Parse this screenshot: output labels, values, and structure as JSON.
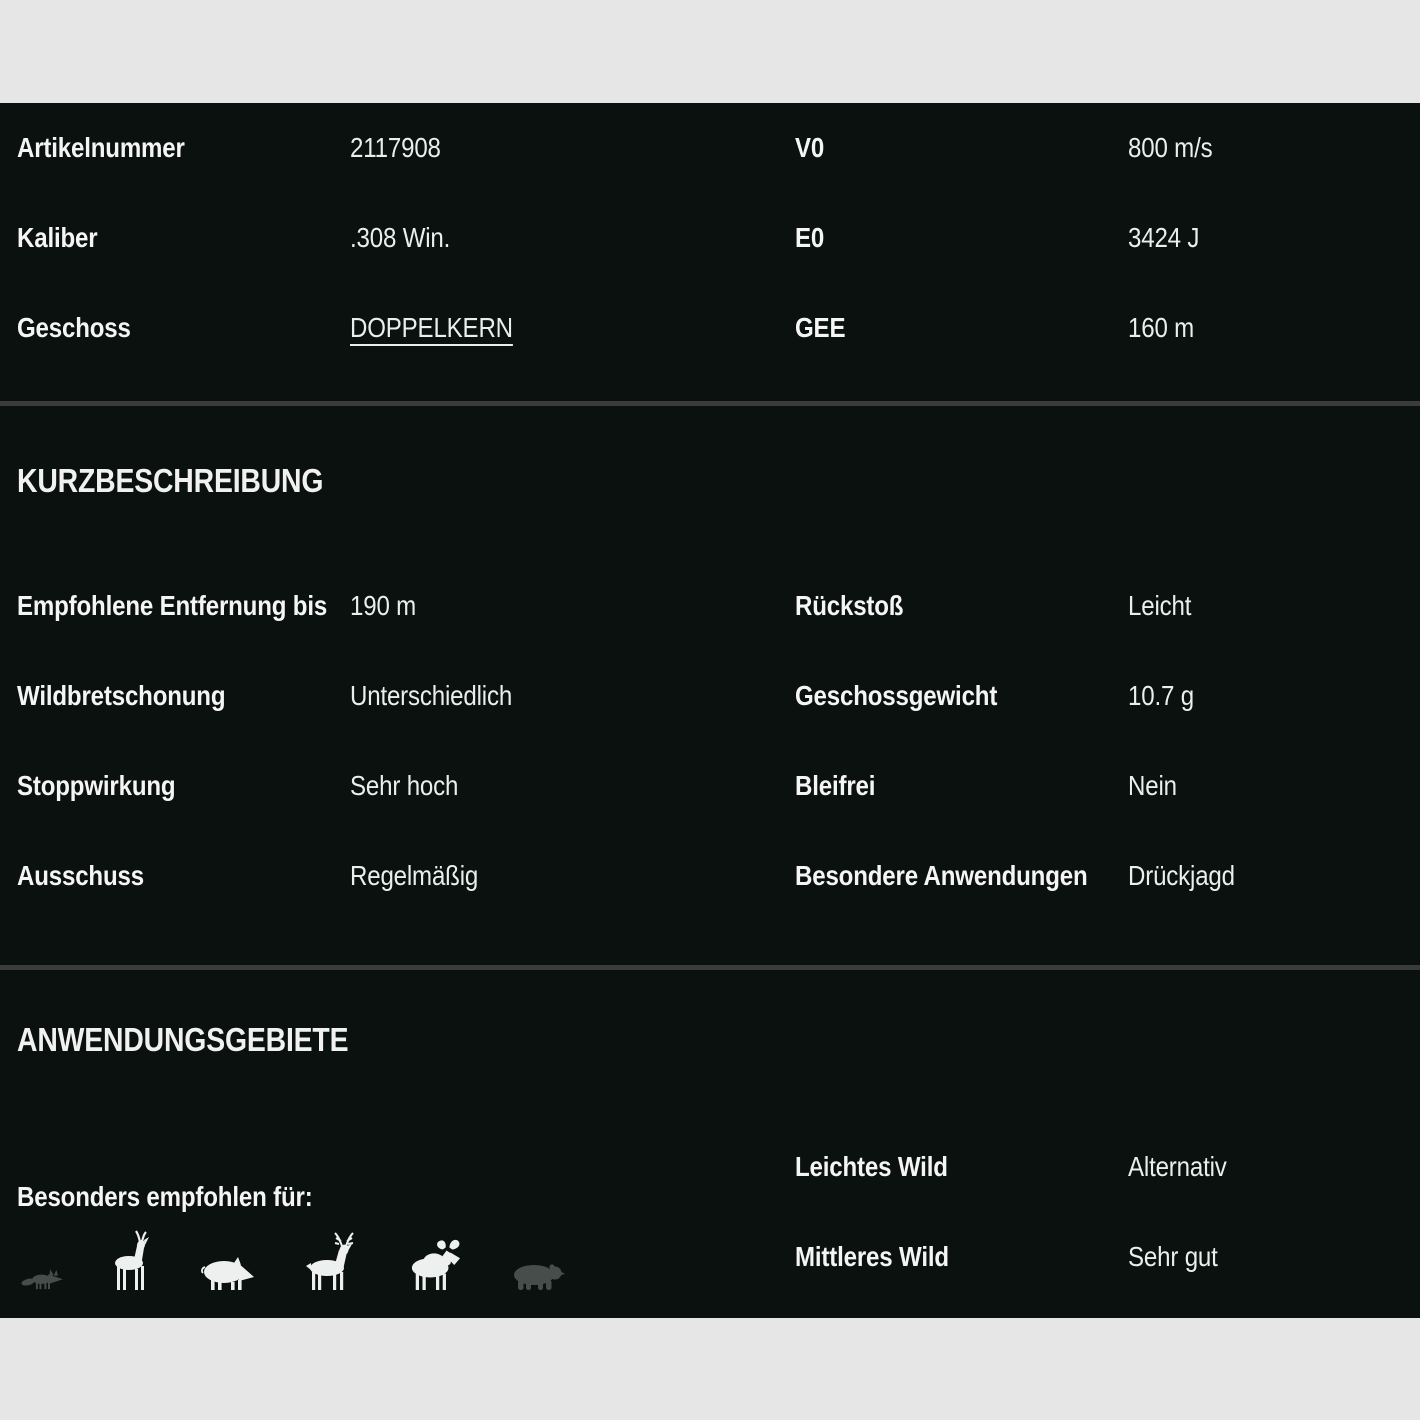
{
  "colors": {
    "band": "#e5e6e5",
    "panel_bg": "#0a110f",
    "divider": "#3a3c3b",
    "text": "#f2f2f2",
    "icon_active": "#edf0ee",
    "icon_inactive": "#474d4b"
  },
  "specs": {
    "left": [
      {
        "label": "Artikelnummer",
        "value": "2117908"
      },
      {
        "label": "Kaliber",
        "value": ".308 Win."
      },
      {
        "label": "Geschoss",
        "value": "DOPPELKERN",
        "link": true
      }
    ],
    "right": [
      {
        "label": "V0",
        "value": "800 m/s"
      },
      {
        "label": "E0",
        "value": "3424 J"
      },
      {
        "label": "GEE",
        "value": "160 m"
      }
    ]
  },
  "kurzbeschreibung": {
    "title": "KURZBESCHREIBUNG",
    "left": [
      {
        "label": "Empfohlene Entfernung bis",
        "value": "190 m"
      },
      {
        "label": "Wildbretschonung",
        "value": "Unterschiedlich"
      },
      {
        "label": "Stoppwirkung",
        "value": "Sehr hoch"
      },
      {
        "label": "Ausschuss",
        "value": "Regelmäßig"
      }
    ],
    "right": [
      {
        "label": "Rückstoß",
        "value": "Leicht"
      },
      {
        "label": "Geschossgewicht",
        "value": "10.7 g"
      },
      {
        "label": "Bleifrei",
        "value": "Nein"
      },
      {
        "label": "Besondere Anwendungen",
        "value": "Drückjagd"
      }
    ]
  },
  "anwendungsgebiete": {
    "title": "ANWENDUNGSGEBIETE",
    "recommended_label": "Besonders empfohlen für:",
    "animals": [
      {
        "name": "fox",
        "recommended": false
      },
      {
        "name": "roe-deer",
        "recommended": true
      },
      {
        "name": "wild-boar",
        "recommended": true
      },
      {
        "name": "red-deer",
        "recommended": true
      },
      {
        "name": "moose",
        "recommended": true
      },
      {
        "name": "bear",
        "recommended": false
      }
    ],
    "right": [
      {
        "label": "Leichtes Wild",
        "value": "Alternativ"
      },
      {
        "label": "Mittleres Wild",
        "value": "Sehr gut"
      }
    ]
  }
}
